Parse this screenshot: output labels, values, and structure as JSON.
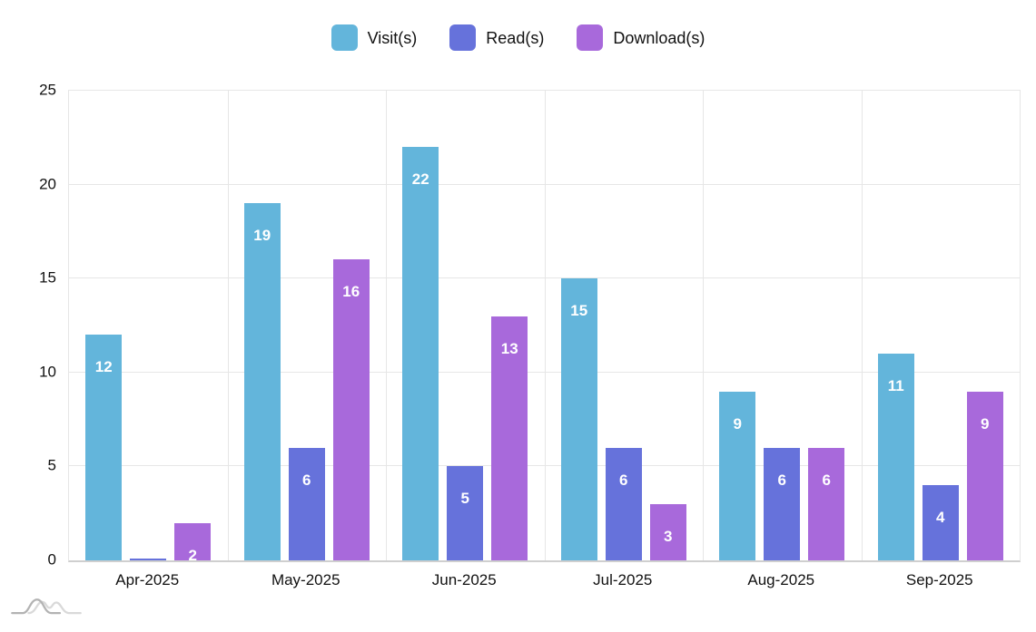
{
  "chart_data": {
    "type": "bar",
    "title": "",
    "categories": [
      "Apr-2025",
      "May-2025",
      "Jun-2025",
      "Jul-2025",
      "Aug-2025",
      "Sep-2025"
    ],
    "series": [
      {
        "name": "Visit(s)",
        "color": "#63b5db",
        "values": [
          12,
          19,
          22,
          15,
          9,
          11
        ]
      },
      {
        "name": "Read(s)",
        "color": "#6672db",
        "values": [
          0,
          6,
          5,
          6,
          6,
          4
        ]
      },
      {
        "name": "Download(s)",
        "color": "#a869db",
        "values": [
          2,
          16,
          13,
          3,
          6,
          9
        ]
      }
    ],
    "ylim": [
      0,
      25
    ],
    "yticks": [
      0,
      5,
      10,
      15,
      20,
      25
    ],
    "grid": true,
    "legend_position": "top",
    "bar_value_labels": "inside-top"
  },
  "colors": {
    "visit_bar": "#63b5db",
    "read_bar": "#6672db",
    "download_bar": "#a869db",
    "gridline": "#e6e6e6",
    "axis_line": "#cfcfcf",
    "bar_label_text": "#ffffff",
    "axis_text": "#111111",
    "watermark_front": "#b3b3b3",
    "watermark_back": "#d9d9d9"
  }
}
